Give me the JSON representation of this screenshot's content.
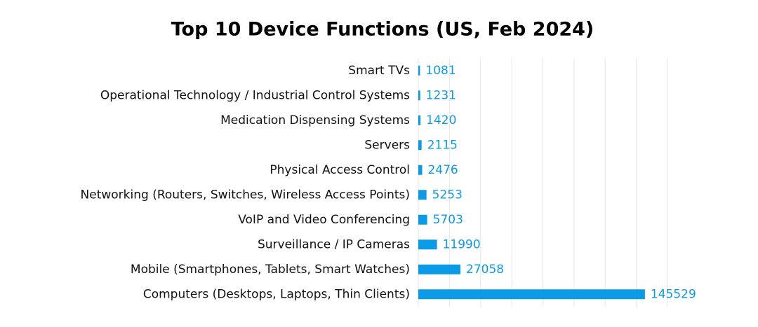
{
  "chart_data": {
    "type": "hbar",
    "title": "Top 10 Device Functions (US, Feb 2024)",
    "categories": [
      "Smart TVs",
      "Operational Technology / Industrial Control Systems",
      "Medication Dispensing Systems",
      "Servers",
      "Physical Access Control",
      "Networking (Routers, Switches, Wireless Access Points)",
      "VoIP and Video Conferencing",
      "Surveillance / IP Cameras",
      "Mobile (Smartphones, Tablets, Smart Watches)",
      "Computers (Desktops, Laptops, Thin Clients)"
    ],
    "values": [
      1081,
      1231,
      1420,
      2115,
      2476,
      5253,
      5703,
      11990,
      27058,
      145529
    ],
    "color": "#0b9ae6",
    "xlim": [
      0,
      160000
    ],
    "xticks": [
      0,
      20000,
      40000,
      60000,
      80000,
      100000,
      120000,
      140000,
      160000
    ],
    "grid": true
  }
}
